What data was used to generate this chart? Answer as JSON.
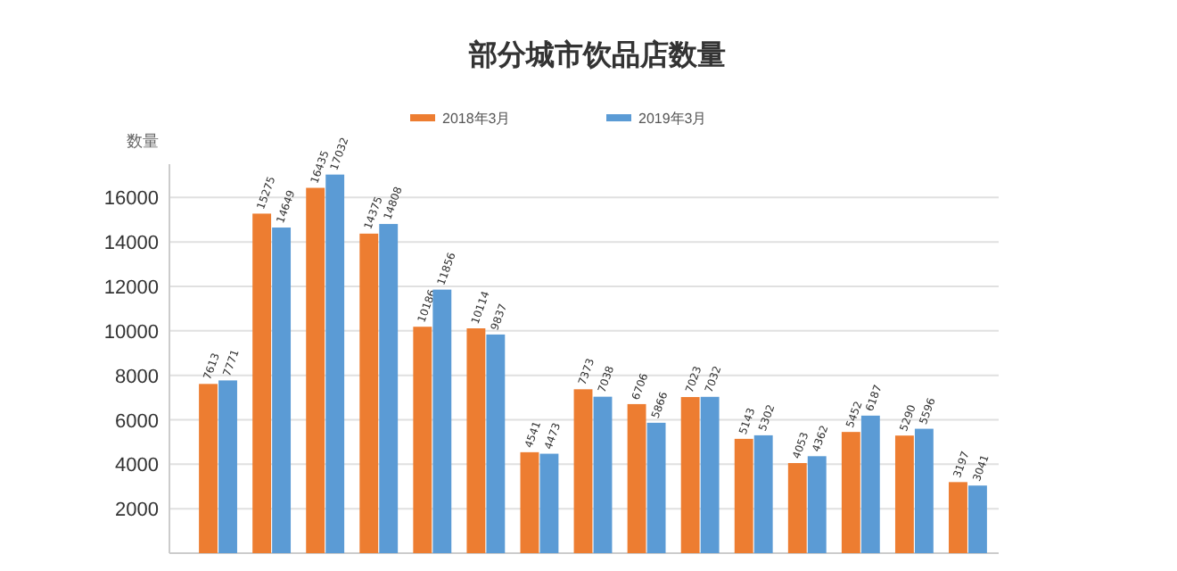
{
  "chart_data": {
    "type": "bar",
    "title": "部分城市饮品店数量",
    "ylabel": "数量",
    "categories": [
      null,
      null,
      null,
      null,
      null,
      null,
      null,
      null,
      null,
      null,
      null,
      null,
      null,
      null,
      null
    ],
    "series": [
      {
        "name": "2018年3月",
        "color": "#ed7d31",
        "values": [
          7613,
          15275,
          16435,
          14375,
          10186,
          10114,
          4541,
          7373,
          6706,
          7023,
          5143,
          4053,
          5452,
          5290,
          3197
        ]
      },
      {
        "name": "2019年3月",
        "color": "#5b9bd5",
        "values": [
          7771,
          14649,
          17032,
          14808,
          11856,
          9837,
          4473,
          7038,
          5866,
          7032,
          5302,
          4362,
          6187,
          5596,
          3041
        ]
      }
    ],
    "ylim": [
      0,
      17500
    ],
    "yticks": [
      2000,
      4000,
      6000,
      8000,
      10000,
      12000,
      14000,
      16000
    ],
    "grid": "y",
    "legend": "top",
    "data_labels": true
  }
}
